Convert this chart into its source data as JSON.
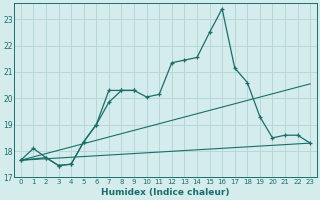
{
  "title": "",
  "xlabel": "Humidex (Indice chaleur)",
  "bg_color": "#d4ecec",
  "grid_color": "#b8d8d8",
  "line_color": "#1a6e6a",
  "xlim": [
    -0.5,
    23.5
  ],
  "ylim": [
    17.0,
    23.6
  ],
  "yticks": [
    17,
    18,
    19,
    20,
    21,
    22,
    23
  ],
  "xticks": [
    0,
    1,
    2,
    3,
    4,
    5,
    6,
    7,
    8,
    9,
    10,
    11,
    12,
    13,
    14,
    15,
    16,
    17,
    18,
    19,
    20,
    21,
    22,
    23
  ],
  "line1_x": [
    0,
    1,
    2,
    3,
    4,
    5,
    6,
    7,
    8,
    9,
    10,
    11,
    12,
    13,
    14,
    15,
    16,
    17,
    18,
    19,
    20,
    21,
    22,
    23
  ],
  "line1_y": [
    17.65,
    18.1,
    17.75,
    17.45,
    17.5,
    18.35,
    19.0,
    19.85,
    20.3,
    20.3,
    20.05,
    20.15,
    21.35,
    21.45,
    21.55,
    22.5,
    23.4,
    21.15,
    20.6,
    19.3,
    18.5,
    18.6,
    18.6,
    18.3
  ],
  "line2_x": [
    0,
    2,
    3,
    4,
    5,
    6,
    7,
    8,
    9
  ],
  "line2_y": [
    17.65,
    17.75,
    17.45,
    17.5,
    18.35,
    19.0,
    20.3,
    20.3,
    20.3
  ],
  "line3_x": [
    0,
    23
  ],
  "line3_y": [
    17.65,
    20.55
  ],
  "line4_x": [
    0,
    23
  ],
  "line4_y": [
    17.65,
    18.3
  ]
}
